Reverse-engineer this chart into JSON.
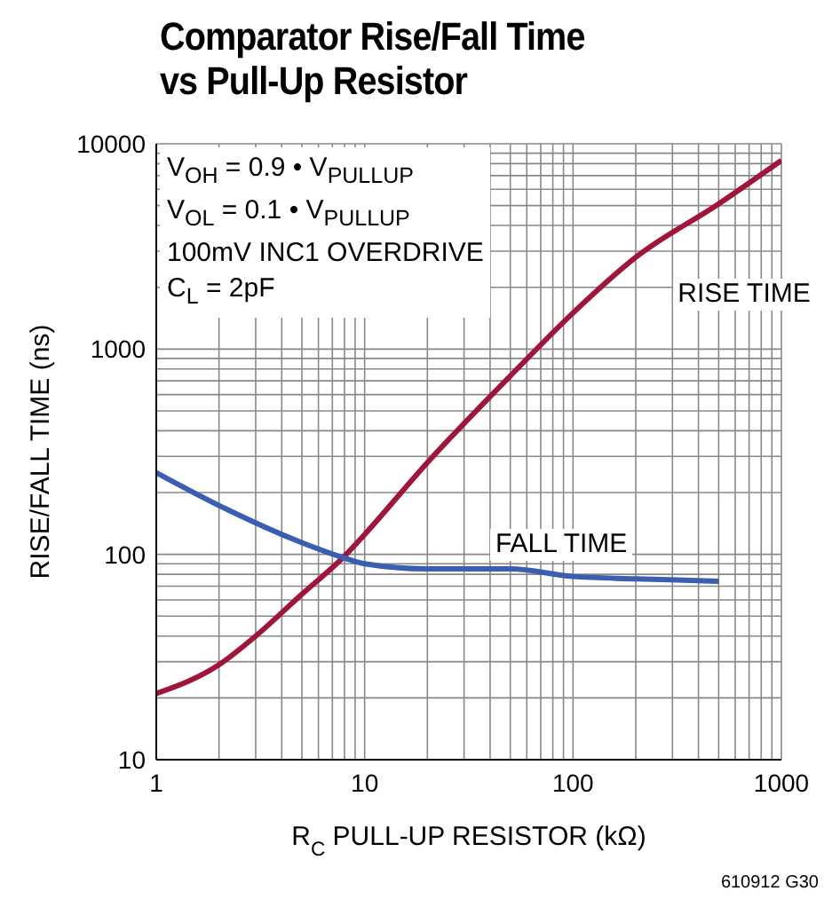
{
  "chart_data": {
    "type": "line",
    "title": "Comparator Rise/Fall Time\nvs Pull-Up Resistor",
    "xlabel": "R$_{C}$ PULL-UP RESISTOR (kΩ)",
    "ylabel": "RISE/FALL TIME (ns)",
    "annotations": [
      "V$_{OH}$ = 0.9 • V$_{PULLUP}$",
      "V$_{OL}$ = 0.1 • V$_{PULLUP}$",
      "100mV INC1 OVERDRIVE",
      "C$_{L}$ = 2pF",
      "610912 G30"
    ],
    "series": [
      {
        "name": "RISE TIME",
        "color": "#a0163a",
        "x": [
          1,
          2,
          3,
          5,
          8,
          10,
          20,
          50,
          100,
          200,
          500,
          1000
        ],
        "values": [
          21,
          29,
          40,
          64,
          98,
          125,
          280,
          740,
          1500,
          2800,
          5100,
          8300
        ]
      },
      {
        "name": "FALL TIME",
        "color": "#3a5fb0",
        "x": [
          1,
          2,
          5,
          8,
          10,
          20,
          50,
          100,
          200,
          500
        ],
        "values": [
          250,
          173,
          114,
          96,
          90,
          85,
          85,
          78,
          76,
          74
        ]
      }
    ],
    "log": "xy",
    "grid": true,
    "legend": false,
    "marker": "none",
    "line_style": "solid",
    "xlim": [
      1,
      1000
    ],
    "ylim": [
      10,
      10000
    ],
    "xticks": [
      1,
      {
        "value": 2,
        "label": null
      },
      {
        "value": 3,
        "label": null
      },
      {
        "value": 4,
        "label": null
      },
      {
        "value": 5,
        "label": null
      },
      {
        "value": 6,
        "label": null
      },
      {
        "value": 7,
        "label": null
      },
      {
        "value": 8,
        "label": null
      },
      {
        "value": 9,
        "label": null
      },
      10,
      {
        "value": 20,
        "label": null
      },
      {
        "value": 30,
        "label": null
      },
      {
        "value": 40,
        "label": null
      },
      {
        "value": 50,
        "label": null
      },
      {
        "value": 60,
        "label": null
      },
      {
        "value": 70,
        "label": null
      },
      {
        "value": 80,
        "label": null
      },
      {
        "value": 90,
        "label": null
      },
      100,
      {
        "value": 200,
        "label": null
      },
      {
        "value": 300,
        "label": null
      },
      {
        "value": 400,
        "label": null
      },
      {
        "value": 500,
        "label": null
      },
      {
        "value": 600,
        "label": null
      },
      {
        "value": 700,
        "label": null
      },
      {
        "value": 800,
        "label": null
      },
      {
        "value": 900,
        "label": null
      },
      1000
    ],
    "yticks": [
      10,
      {
        "value": 20,
        "label": null
      },
      {
        "value": 30,
        "label": null
      },
      {
        "value": 40,
        "label": null
      },
      {
        "value": 50,
        "label": null
      },
      {
        "value": 60,
        "label": null
      },
      {
        "value": 70,
        "label": null
      },
      {
        "value": 80,
        "label": null
      },
      {
        "value": 90,
        "label": null
      },
      100,
      {
        "value": 200,
        "label": null
      },
      {
        "value": 300,
        "label": null
      },
      {
        "value": 400,
        "label": null
      },
      {
        "value": 500,
        "label": null
      },
      {
        "value": 600,
        "label": null
      },
      {
        "value": 700,
        "label": null
      },
      {
        "value": 800,
        "label": null
      },
      {
        "value": 900,
        "label": null
      },
      1000,
      {
        "value": 2000,
        "label": null
      },
      {
        "value": 3000,
        "label": null
      },
      {
        "value": 4000,
        "label": null
      },
      {
        "value": 5000,
        "label": null
      },
      {
        "value": 6000,
        "label": null
      },
      {
        "value": 7000,
        "label": null
      },
      {
        "value": 8000,
        "label": null
      },
      {
        "value": 9000,
        "label": null
      },
      10000
    ]
  }
}
